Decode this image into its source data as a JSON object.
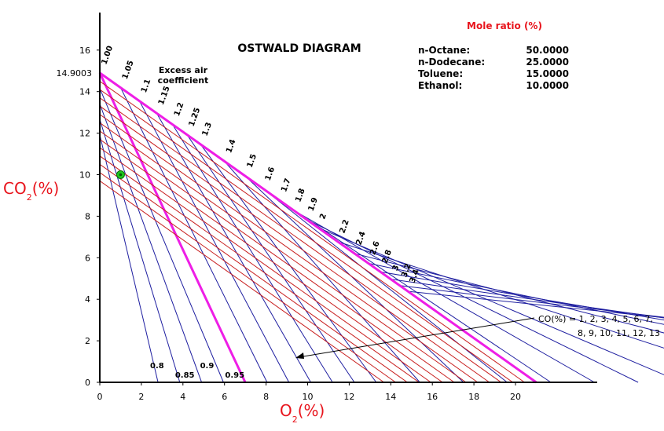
{
  "chart_data": {
    "type": "line",
    "title": "OSTWALD DIAGRAM",
    "xlabel": "O",
    "xlabel_sub": "2",
    "xlabel_unit": "(%)",
    "ylabel": "CO",
    "ylabel_sub": "2",
    "ylabel_unit": "(%)",
    "xlim": [
      0,
      24
    ],
    "ylim": [
      0,
      18
    ],
    "x_ticks": [
      0,
      2,
      4,
      6,
      8,
      10,
      12,
      14,
      16,
      18,
      20
    ],
    "y_ticks": [
      0,
      2,
      4,
      6,
      8,
      10,
      12,
      14,
      16
    ],
    "grid": false,
    "co2_max": 14.9003,
    "co2_max_label": "14.9003",
    "o2_max": 21,
    "lambda_one_o2_at_zero_co2": 7.0,
    "excess_air_label": [
      "Excess air",
      "coefficient"
    ],
    "excess_air_top": [
      "1.00",
      "1.05",
      "1.1",
      "1.15",
      "1.2",
      "1.25",
      "1.3",
      "1.4",
      "1.5",
      "1.6",
      "1.7",
      "1.8",
      "1.9",
      "2",
      "2.2",
      "2.4",
      "2.6",
      "2.8",
      "3",
      "3.2",
      "3.4"
    ],
    "excess_air_bottom": [
      "0.8",
      "0.85",
      "0.9",
      "0.95"
    ],
    "co_lines_label": [
      "CO(%) = 1, 2, 3, 4, 5, 6, 7,",
      "8, 9, 10, 11, 12, 13"
    ],
    "co_values": [
      1,
      2,
      3,
      4,
      5,
      6,
      7,
      8,
      9,
      10,
      11,
      12,
      13
    ],
    "marker_point": {
      "x": 1.0,
      "y": 10.0
    },
    "mole_ratio": {
      "title": "Mole ratio (%)",
      "rows": [
        {
          "name": "n-Octane:",
          "value": "50.0000"
        },
        {
          "name": "n-Dodecane:",
          "value": "25.0000"
        },
        {
          "name": "Toluene:",
          "value": "15.0000"
        },
        {
          "name": "Ethanol:",
          "value": "10.0000"
        }
      ]
    },
    "colors": {
      "boundary": "#ee1ee6",
      "lambda_lines": "#1e1ea0",
      "co_lines": "#c81e1e",
      "axis_label": "#e8141c",
      "marker": "#1ec81e"
    }
  }
}
